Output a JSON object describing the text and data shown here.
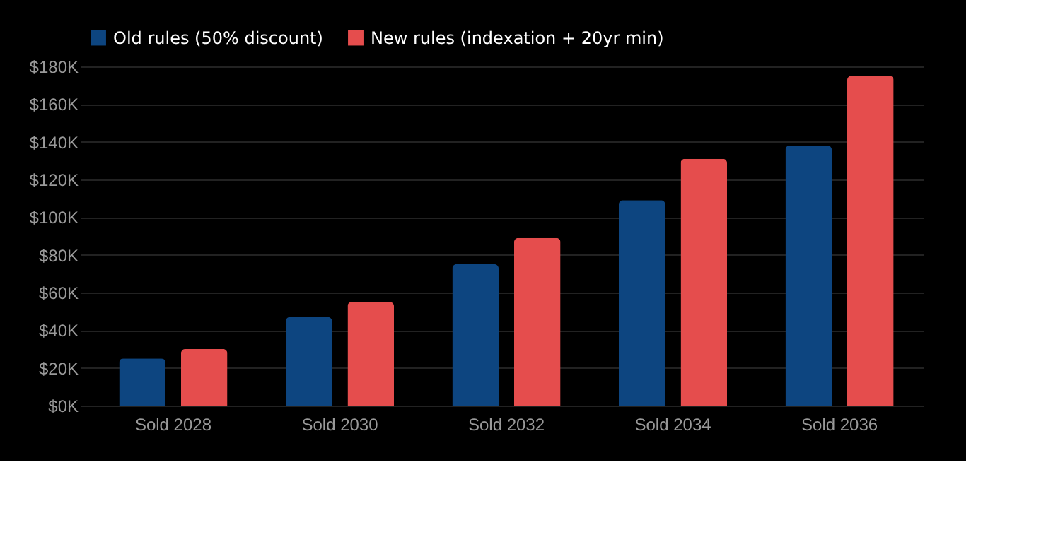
{
  "chart_data": {
    "type": "bar",
    "categories": [
      "Sold 2028",
      "Sold 2030",
      "Sold 2032",
      "Sold 2034",
      "Sold 2036"
    ],
    "series": [
      {
        "name": "Old rules (50% discount)",
        "color": "#0d4580",
        "values": [
          25000,
          47000,
          75000,
          109000,
          138000
        ]
      },
      {
        "name": "New rules (indexation + 20yr min)",
        "color": "#e54d4d",
        "values": [
          30000,
          55000,
          89000,
          131000,
          175000
        ]
      }
    ],
    "ylim": [
      0,
      180000
    ],
    "yticks": [
      {
        "value": 0,
        "label": "$0K"
      },
      {
        "value": 20000,
        "label": "$20K"
      },
      {
        "value": 40000,
        "label": "$40K"
      },
      {
        "value": 60000,
        "label": "$60K"
      },
      {
        "value": 80000,
        "label": "$80K"
      },
      {
        "value": 100000,
        "label": "$100K"
      },
      {
        "value": 120000,
        "label": "$120K"
      },
      {
        "value": 140000,
        "label": "$140K"
      },
      {
        "value": 160000,
        "label": "$160K"
      },
      {
        "value": 180000,
        "label": "$180K"
      }
    ],
    "grid": "y",
    "legend": "top left"
  }
}
